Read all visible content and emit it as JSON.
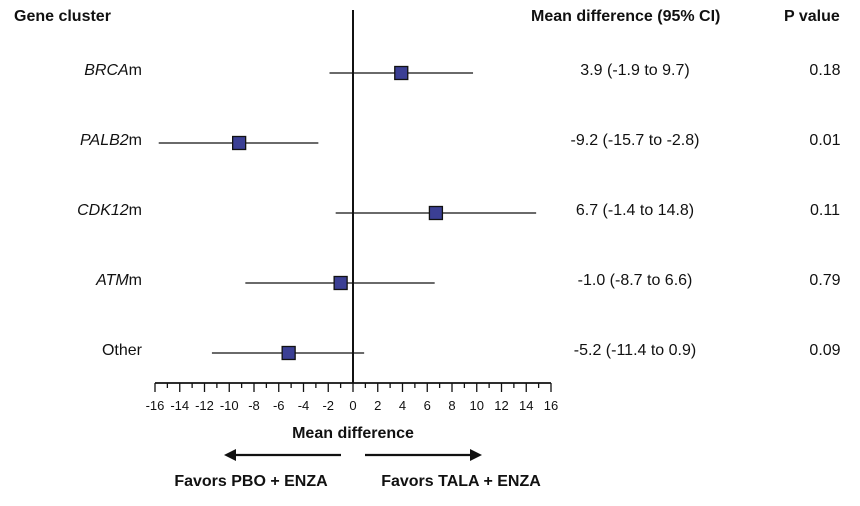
{
  "headers": {
    "gene_cluster": "Gene cluster",
    "mean_difference": "Mean difference (95% CI)",
    "p_value": "P value"
  },
  "rows": [
    {
      "italic": "BRCA",
      "suffix": "m",
      "ci_text": "3.9 (-1.9 to 9.7)",
      "p": "0.18"
    },
    {
      "italic": "PALB2",
      "suffix": "m",
      "ci_text": "-9.2 (-15.7 to -2.8)",
      "p": "0.01"
    },
    {
      "italic": "CDK12",
      "suffix": "m",
      "ci_text": "6.7 (-1.4 to 14.8)",
      "p": "0.11"
    },
    {
      "italic": "ATM",
      "suffix": "m",
      "ci_text": "-1.0 (-8.7 to 6.6)",
      "p": "0.79"
    },
    {
      "italic": "",
      "suffix": "Other",
      "ci_text": "-5.2 (-11.4 to 0.9)",
      "p": "0.09"
    }
  ],
  "chart_data": {
    "type": "scatter",
    "subtype": "forest",
    "categories": [
      "BRCAm",
      "PALB2m",
      "CDK12m",
      "ATMm",
      "Other"
    ],
    "estimates": [
      3.9,
      -9.2,
      6.7,
      -1.0,
      -5.2
    ],
    "ci_low": [
      -1.9,
      -15.7,
      -1.4,
      -8.7,
      -11.4
    ],
    "ci_high": [
      9.7,
      -2.8,
      14.8,
      6.6,
      0.9
    ],
    "xlabel": "Mean difference",
    "xlim": [
      -16,
      16
    ],
    "xticks": [
      "-16",
      "-14",
      "-12",
      "-10",
      "-8",
      "-6",
      "-4",
      "-2",
      "0",
      "2",
      "4",
      "6",
      "8",
      "10",
      "12",
      "14",
      "16"
    ],
    "left_arrow_label": "Favors PBO + ENZA",
    "right_arrow_label": "Favors TALA + ENZA",
    "marker_color": "#3b3f94",
    "line_color": "#111111"
  }
}
